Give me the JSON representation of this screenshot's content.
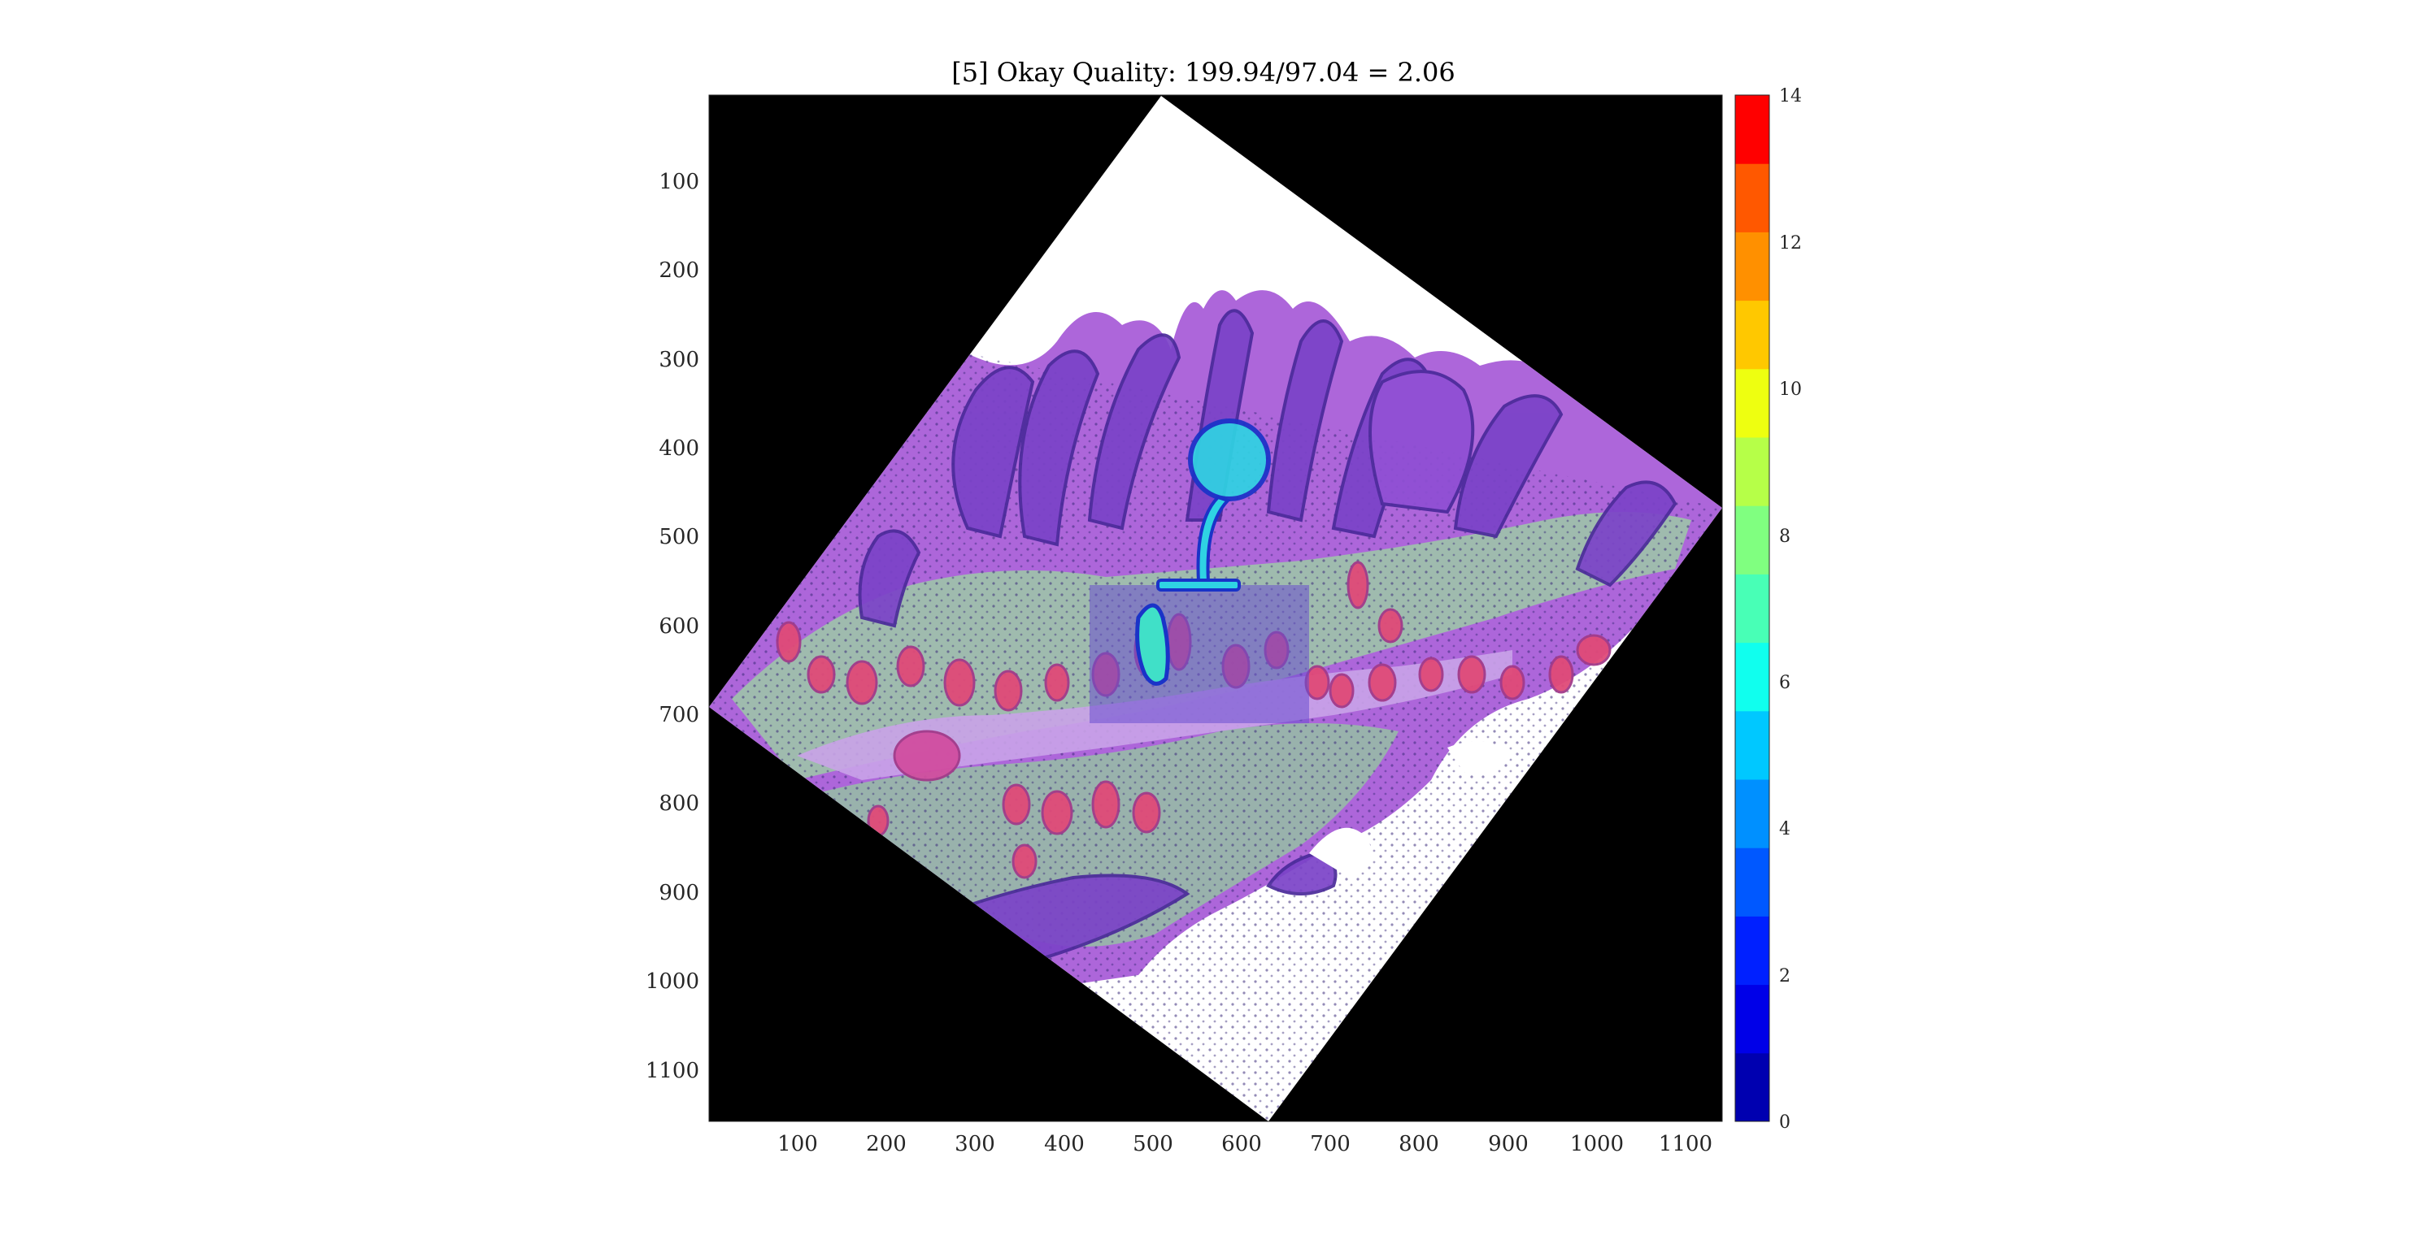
{
  "figure": {
    "title": "[5] Okay Quality: 199.94/97.04 = 2.06"
  },
  "image_axes": {
    "x_ticks": [
      "100",
      "200",
      "300",
      "400",
      "500",
      "600",
      "700",
      "800",
      "900",
      "1000",
      "1100"
    ],
    "y_ticks": [
      "100",
      "200",
      "300",
      "400",
      "500",
      "600",
      "700",
      "800",
      "900",
      "1000",
      "1100"
    ],
    "x_range": [
      0,
      1140
    ],
    "y_range": [
      0,
      1155
    ],
    "background_color": "#000000"
  },
  "colorbar": {
    "colormap": "jet",
    "levels": 15,
    "range": [
      0,
      14
    ],
    "ticks": [
      "0",
      "2",
      "4",
      "6",
      "8",
      "10",
      "12",
      "14"
    ],
    "colors": [
      "#0000b0",
      "#0000e8",
      "#0020ff",
      "#0058ff",
      "#0090ff",
      "#00c8ff",
      "#10ffee",
      "#48ffb6",
      "#80ff80",
      "#b6ff48",
      "#eeff10",
      "#ffc800",
      "#ff9000",
      "#ff5800",
      "#ff0000"
    ]
  },
  "overlay": {
    "tissue_colors": [
      "#a55cd6",
      "#7a3fc4",
      "#9fc9a8",
      "#e04a78",
      "#c9a3e8"
    ],
    "annotation_color": "#2fd3e3",
    "annotation_outline": "#1a33c8",
    "roi_fill": "#6a4fd0"
  }
}
